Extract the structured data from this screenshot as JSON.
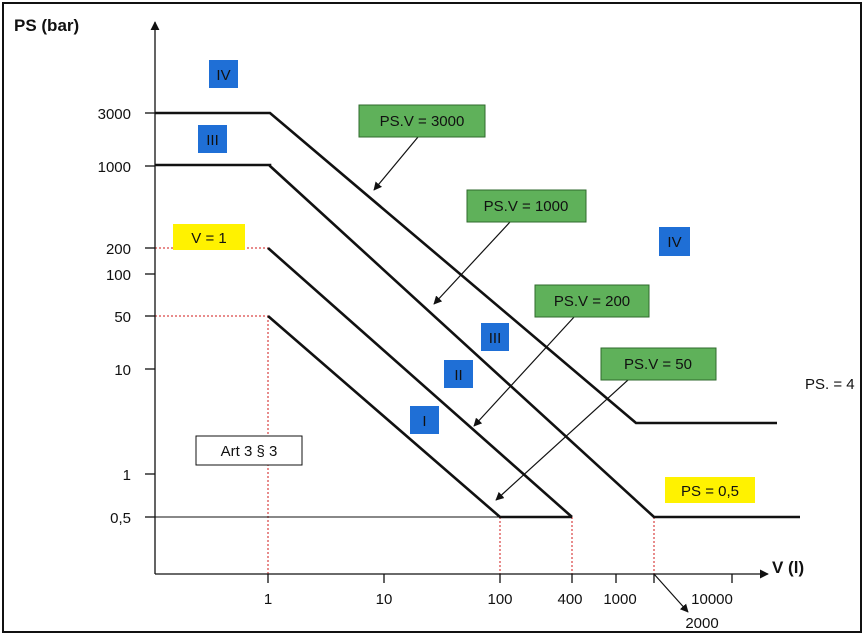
{
  "axes": {
    "y_title": "PS (bar)",
    "x_title": "V (l)",
    "y_ticks": [
      "3000",
      "1000",
      "200",
      "100",
      "50",
      "10",
      "1",
      "0,5"
    ],
    "x_ticks": [
      "1",
      "10",
      "100",
      "400",
      "1000",
      "10000"
    ],
    "x_extra_tick": "2000"
  },
  "zones": [
    "IV",
    "III",
    "IV",
    "III",
    "II",
    "I"
  ],
  "labels": {
    "psv_3000": "PS.V = 3000",
    "psv_1000": "PS.V = 1000",
    "psv_200": "PS.V = 200",
    "psv_50": "PS.V = 50",
    "v_eq_1": "V = 1",
    "ps_eq_4": "PS. = 4",
    "ps_eq_05": "PS = 0,5",
    "art": "Art 3 § 3"
  },
  "colors": {
    "green_box": "#5fb15a",
    "blue_box": "#1f6fd6",
    "yellow_box": "#fff200",
    "guide_line": "#d21a1a",
    "curve": "#111111"
  },
  "chart_data": {
    "type": "line",
    "x_scale": "log",
    "y_scale": "log",
    "xlabel": "V (l)",
    "ylabel": "PS (bar)",
    "series": [
      {
        "name": "PS.V = 3000",
        "points": [
          [
            0.1,
            3000
          ],
          [
            1,
            3000
          ],
          [
            750,
            4
          ],
          [
            20000,
            4
          ]
        ]
      },
      {
        "name": "PS.V = 1000",
        "points": [
          [
            0.1,
            1000
          ],
          [
            1,
            1000
          ],
          [
            2000,
            0.5
          ],
          [
            20000,
            0.5
          ]
        ]
      },
      {
        "name": "PS.V = 200",
        "points": [
          [
            1,
            200
          ],
          [
            400,
            0.5
          ]
        ]
      },
      {
        "name": "PS.V = 50",
        "points": [
          [
            1,
            50
          ],
          [
            100,
            0.5
          ]
        ]
      }
    ]
  }
}
